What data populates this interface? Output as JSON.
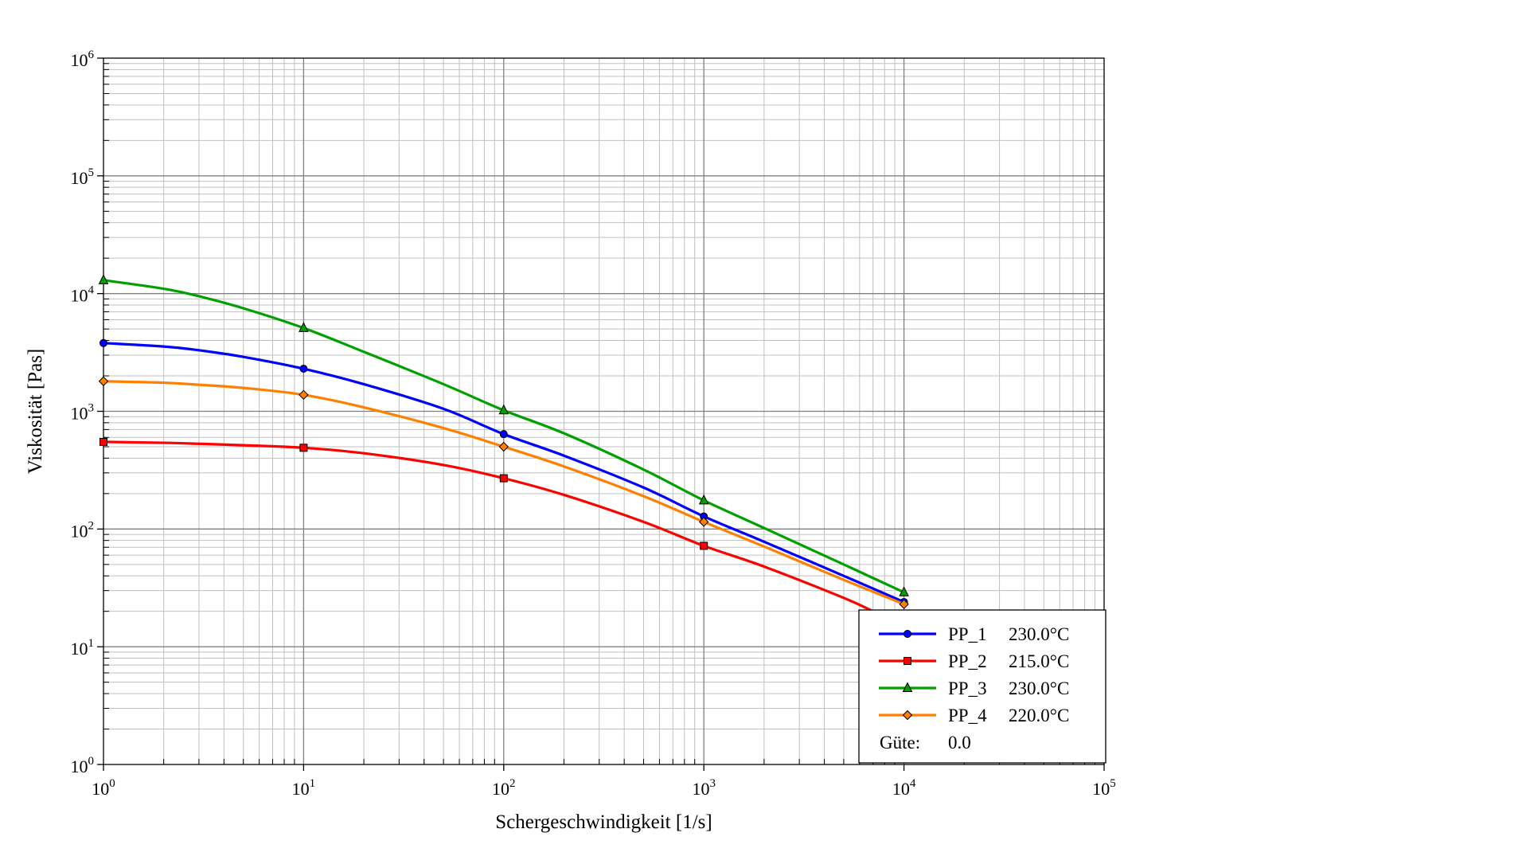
{
  "chart_data": {
    "type": "line",
    "title": "",
    "xlabel": "Schergeschwindigkeit [1/s]",
    "ylabel": "Viskosität [Pas]",
    "x_scale": "log",
    "y_scale": "log",
    "xlim": [
      1,
      100000
    ],
    "ylim": [
      1,
      1000000
    ],
    "grid": true,
    "legend_position": "bottom-right",
    "x_ticks": [
      {
        "base": "10",
        "exp": "0"
      },
      {
        "base": "10",
        "exp": "1"
      },
      {
        "base": "10",
        "exp": "2"
      },
      {
        "base": "10",
        "exp": "3"
      },
      {
        "base": "10",
        "exp": "4"
      },
      {
        "base": "10",
        "exp": "5"
      }
    ],
    "y_ticks": [
      {
        "base": "10",
        "exp": "0"
      },
      {
        "base": "10",
        "exp": "1"
      },
      {
        "base": "10",
        "exp": "2"
      },
      {
        "base": "10",
        "exp": "3"
      },
      {
        "base": "10",
        "exp": "4"
      },
      {
        "base": "10",
        "exp": "5"
      },
      {
        "base": "10",
        "exp": "6"
      }
    ],
    "series": [
      {
        "name": "PP_1",
        "temperature": "230.0°C",
        "color": "#0000ff",
        "marker": "circle",
        "x": [
          1,
          2,
          3,
          5,
          10,
          20,
          50,
          100,
          200,
          500,
          1000,
          2000,
          5000,
          10000
        ],
        "y": [
          3800,
          3550,
          3300,
          2900,
          2300,
          1700,
          1050,
          640,
          420,
          225,
          128,
          78,
          40,
          24
        ],
        "markers_x": [
          1,
          10,
          100,
          1000,
          10000
        ],
        "markers_y": [
          3800,
          2300,
          640,
          128,
          24
        ]
      },
      {
        "name": "PP_2",
        "temperature": "215.0°C",
        "color": "#ff0000",
        "marker": "square",
        "x": [
          1,
          2,
          3,
          5,
          10,
          20,
          50,
          100,
          200,
          500,
          1000,
          2000,
          5000,
          7000
        ],
        "y": [
          550,
          540,
          530,
          515,
          490,
          440,
          350,
          270,
          195,
          115,
          72,
          48,
          26,
          20
        ],
        "markers_x": [
          1,
          10,
          100,
          1000
        ],
        "markers_y": [
          550,
          490,
          270,
          72
        ]
      },
      {
        "name": "PP_3",
        "temperature": "230.0°C",
        "color": "#00a000",
        "marker": "triangle",
        "x": [
          1,
          2,
          3,
          5,
          10,
          20,
          50,
          100,
          200,
          500,
          1000,
          2000,
          5000,
          10000
        ],
        "y": [
          13000,
          11000,
          9500,
          7500,
          5100,
          3200,
          1700,
          1020,
          650,
          320,
          175,
          102,
          50,
          29
        ],
        "markers_x": [
          1,
          10,
          100,
          1000,
          10000
        ],
        "markers_y": [
          13000,
          5100,
          1020,
          175,
          29
        ]
      },
      {
        "name": "PP_4",
        "temperature": "220.0°C",
        "color": "#ff8000",
        "marker": "diamond",
        "x": [
          1,
          2,
          3,
          5,
          10,
          20,
          50,
          100,
          200,
          500,
          1000,
          2000,
          5000,
          10000
        ],
        "y": [
          1800,
          1750,
          1680,
          1580,
          1380,
          1080,
          720,
          500,
          340,
          190,
          115,
          71,
          37,
          23
        ],
        "markers_x": [
          1,
          10,
          100,
          1000,
          10000
        ],
        "markers_y": [
          1800,
          1380,
          500,
          115,
          23
        ]
      }
    ],
    "legend_extra": {
      "label": "Güte:",
      "value": "0.0"
    }
  }
}
